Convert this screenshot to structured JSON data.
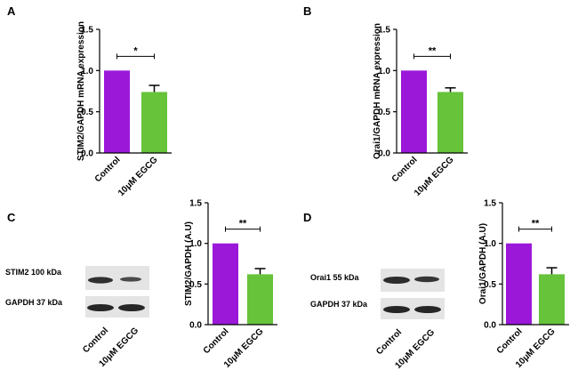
{
  "colors": {
    "control": "#9b18d9",
    "egcg": "#66c33a",
    "band": "#2f2f2f",
    "blot_bg": "#e4e4e4"
  },
  "chart_data": [
    {
      "panel": "A",
      "type": "bar",
      "ylabel": "STIM2/GAPDH mRNA expression",
      "categories": [
        "Control",
        "10μM EGCG"
      ],
      "values": [
        1.0,
        0.74
      ],
      "errors": [
        0,
        0.08
      ],
      "ylim": [
        0,
        1.5
      ],
      "yticks": [
        "0.0",
        "0.5",
        "1.0",
        "1.5"
      ],
      "significance": "*"
    },
    {
      "panel": "B",
      "type": "bar",
      "ylabel": "Orai1/GAPDH mRNA expression",
      "categories": [
        "Control",
        "10μM EGCG"
      ],
      "values": [
        1.0,
        0.74
      ],
      "errors": [
        0,
        0.05
      ],
      "ylim": [
        0,
        1.5
      ],
      "yticks": [
        "0.0",
        "0.5",
        "1.0",
        "1.5"
      ],
      "significance": "**"
    },
    {
      "panel": "C",
      "type": "bar",
      "ylabel": "STIM2/GAPDH (A.U)",
      "categories": [
        "Control",
        "10μM EGCG"
      ],
      "values": [
        1.0,
        0.62
      ],
      "errors": [
        0,
        0.07
      ],
      "ylim": [
        0,
        1.5
      ],
      "yticks": [
        "0.0",
        "0.5",
        "1.0",
        "1.5"
      ],
      "significance": "**"
    },
    {
      "panel": "D",
      "type": "bar",
      "ylabel": "Orai1/GAPDH (A.U)",
      "categories": [
        "Control",
        "10μM EGCG"
      ],
      "values": [
        1.0,
        0.62
      ],
      "errors": [
        0,
        0.08
      ],
      "ylim": [
        0,
        1.5
      ],
      "yticks": [
        "0.0",
        "0.5",
        "1.0",
        "1.5"
      ],
      "significance": "**"
    }
  ],
  "blots": [
    {
      "panel": "C",
      "top_label": "STIM2 100 kDa",
      "bottom_label": "GAPDH 37 kDa",
      "lanes": [
        "Control",
        "10μM EGCG"
      ]
    },
    {
      "panel": "D",
      "top_label": "Orai1  55 kDa",
      "bottom_label": "GAPDH 37 kDa",
      "lanes": [
        "Control",
        "10μM EGCG"
      ]
    }
  ]
}
